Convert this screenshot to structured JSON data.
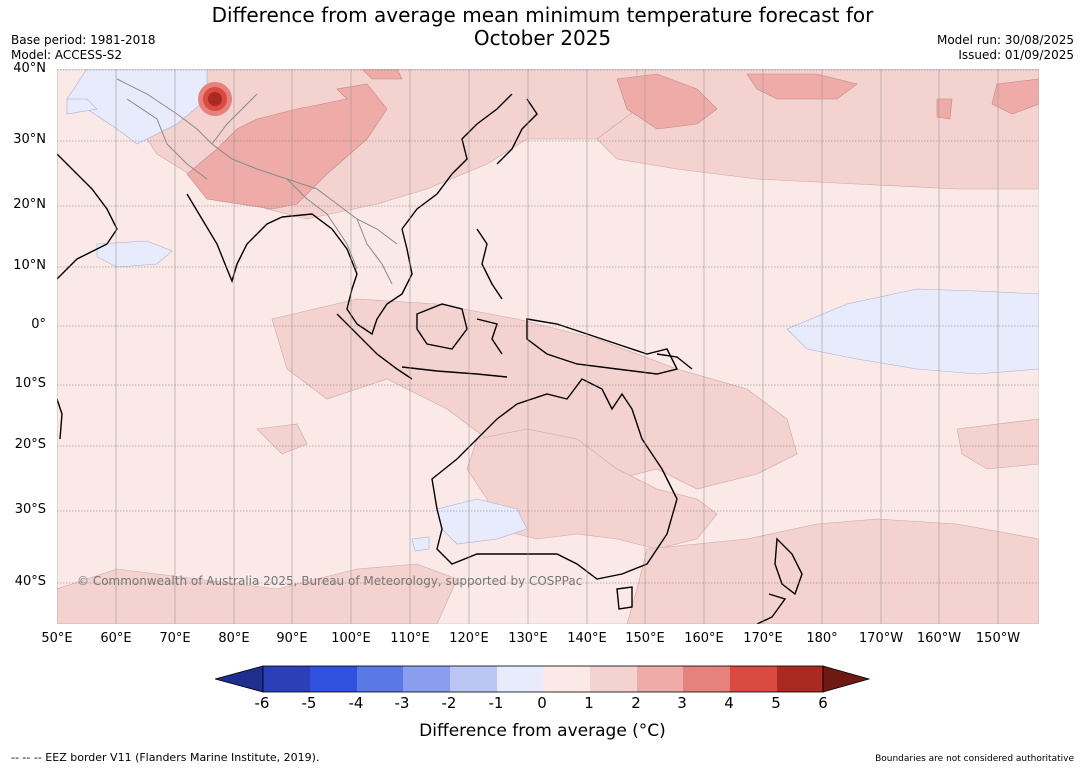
{
  "title_line1": "Difference from average mean minimum temperature forecast for",
  "title_line2": "October 2025",
  "meta_left": [
    "Base period: 1981-2018",
    "Model: ACCESS-S2"
  ],
  "meta_right": [
    "Model run: 30/08/2025",
    "Issued: 01/09/2025"
  ],
  "lat_labels": [
    "40°N",
    "30°N",
    "20°N",
    "10°N",
    "0°",
    "10°S",
    "20°S",
    "30°S",
    "40°S"
  ],
  "lon_labels": [
    "50°E",
    "60°E",
    "70°E",
    "80°E",
    "90°E",
    "100°E",
    "110°E",
    "120°E",
    "130°E",
    "140°E",
    "150°E",
    "160°E",
    "170°E",
    "180°",
    "170°W",
    "160°W",
    "150°W"
  ],
  "copyright": "© Commonwealth of Australia 2025, Bureau of Meteorology, supported by COSPPac",
  "colorbar": {
    "ticks": [
      "-6",
      "-5",
      "-4",
      "-3",
      "-2",
      "-1",
      "0",
      "1",
      "2",
      "3",
      "4",
      "5",
      "6"
    ],
    "colors": [
      "#1f2f8f",
      "#2a3fb8",
      "#3050e0",
      "#5a78e6",
      "#8a9ef0",
      "#bcc6f4",
      "#e7ebfb",
      "#fbe9e7",
      "#f4d2cf",
      "#eeaba7",
      "#e6817b",
      "#d94a40",
      "#aa2a22",
      "#6e1a14"
    ],
    "label": "Difference from average (°C)"
  },
  "footer_left": "--  --  -- EEZ border V11 (Flanders Marine Institute, 2019).",
  "footer_right": "Boundaries are not considered authoritative"
}
